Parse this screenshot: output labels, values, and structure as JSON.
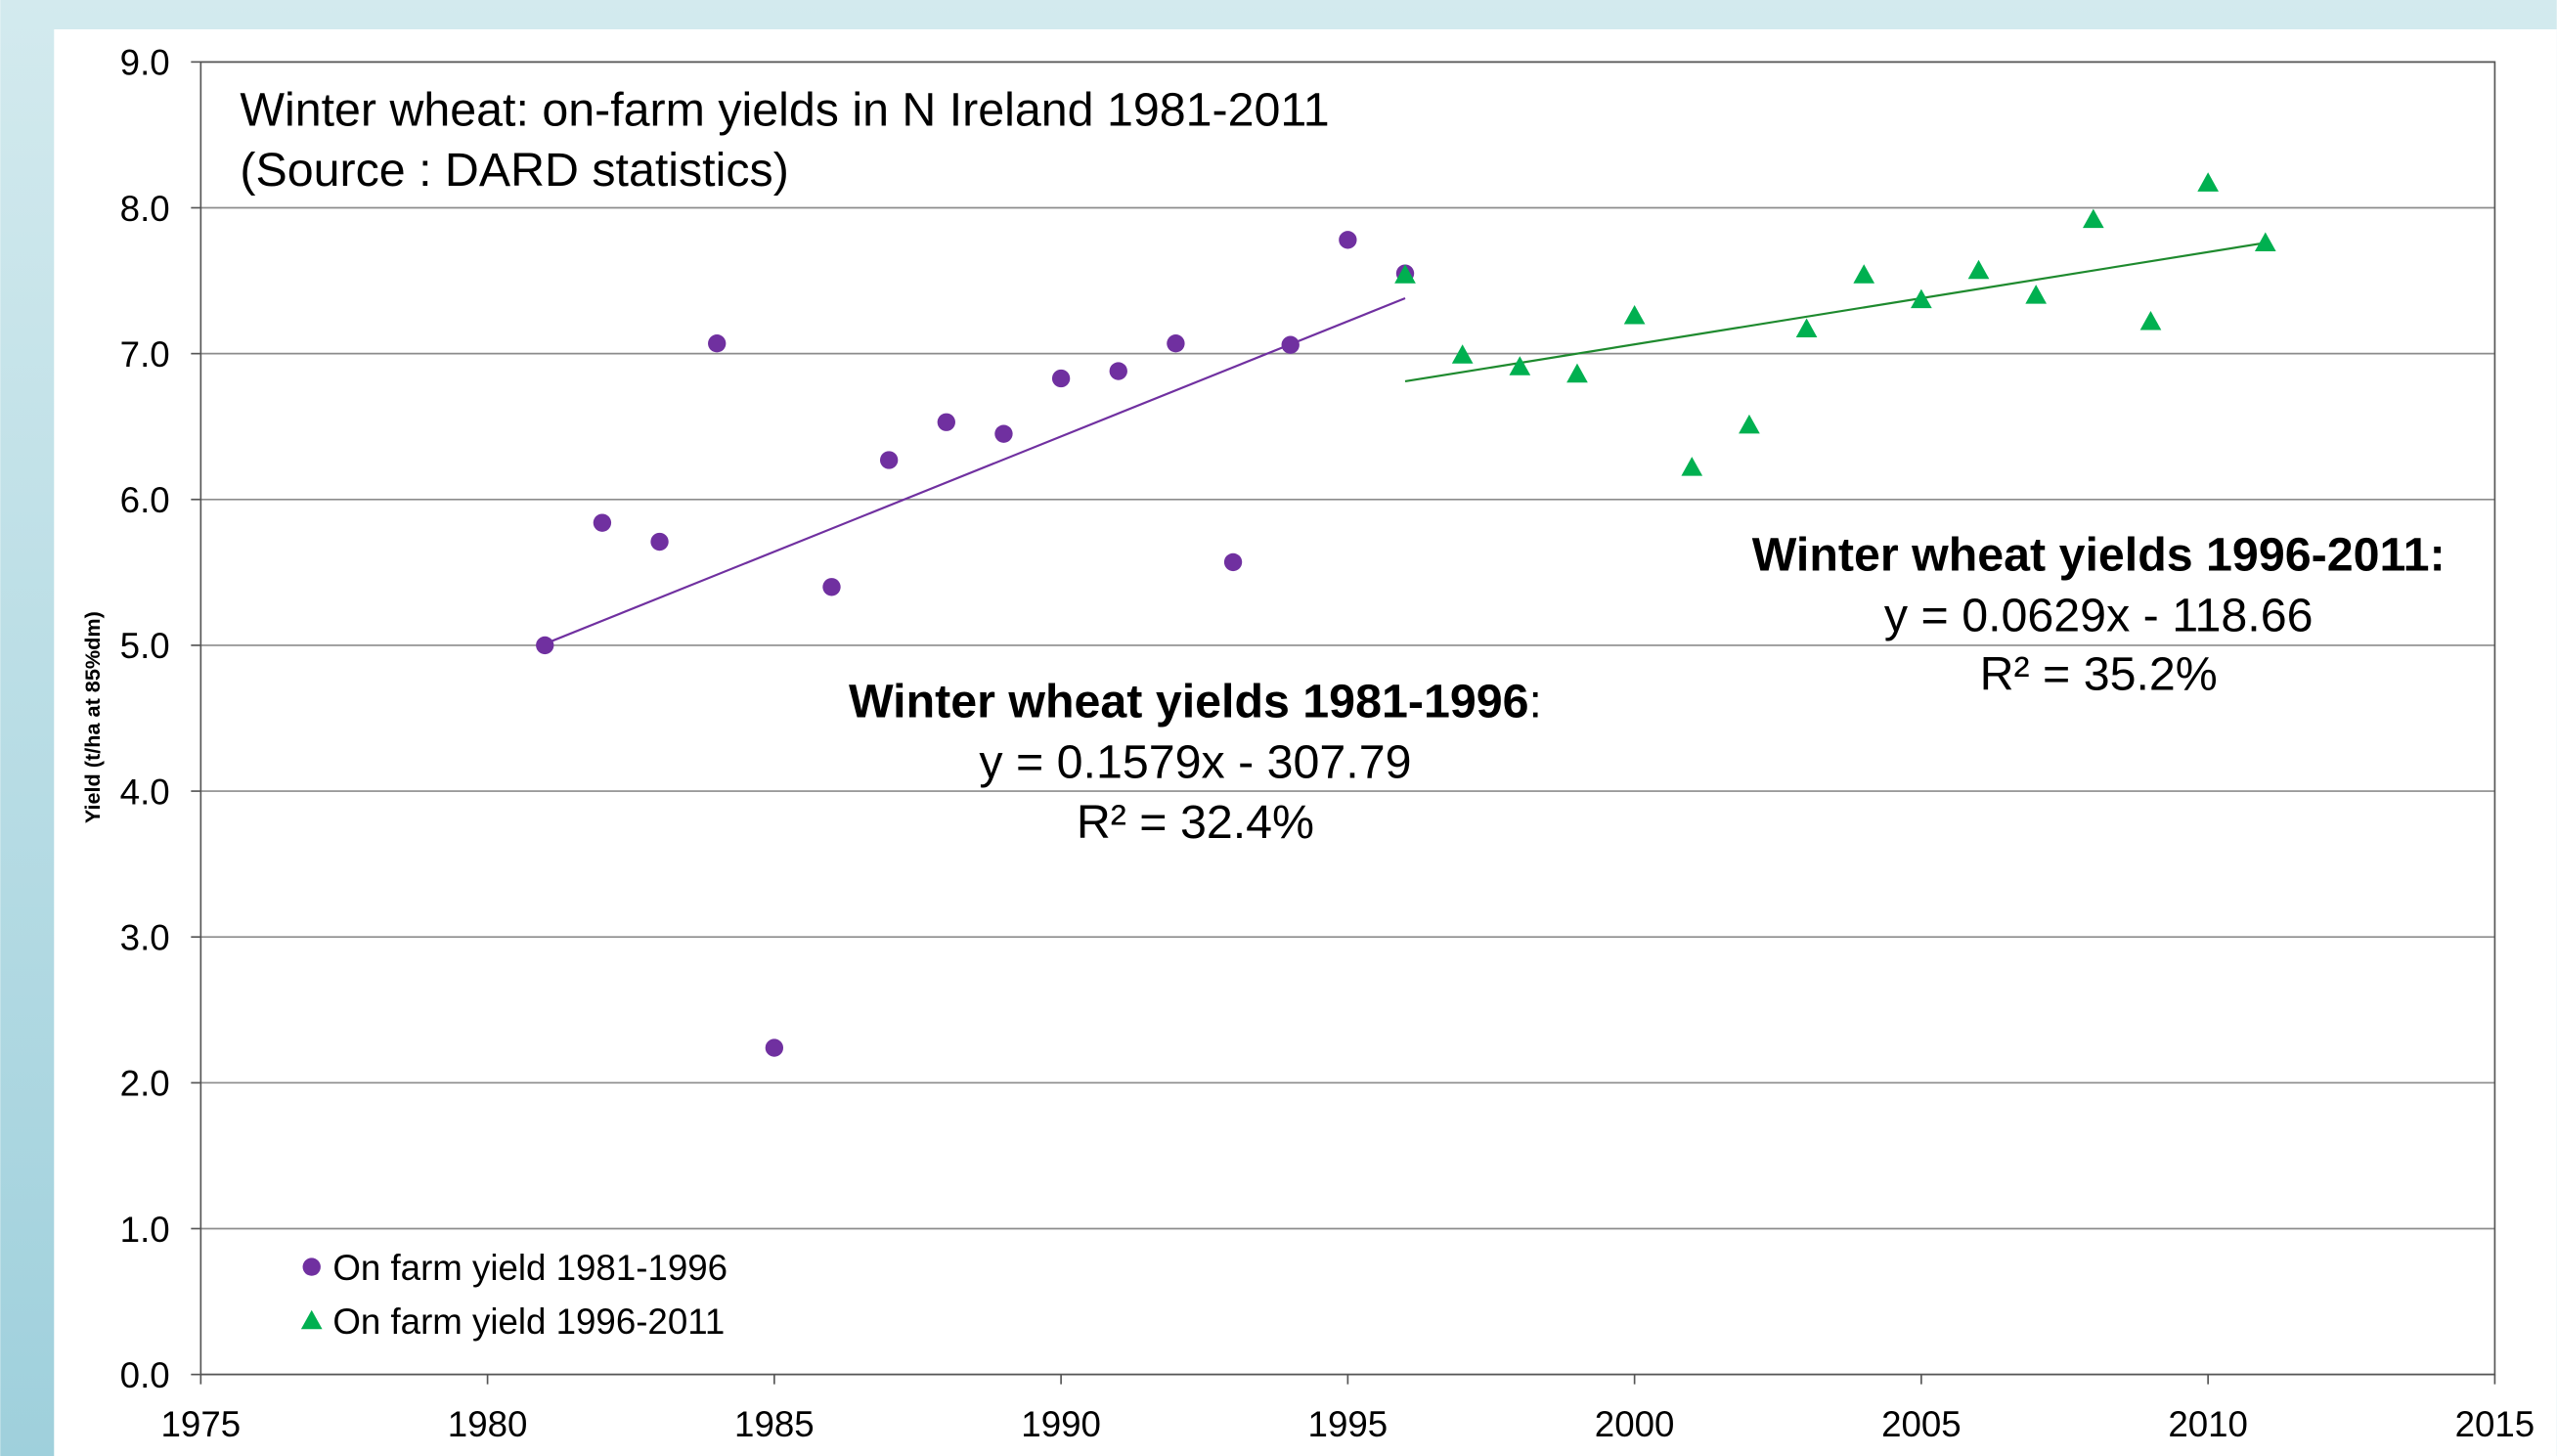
{
  "chart_data": {
    "type": "scatter",
    "title": [
      "Winter wheat: on-farm yields in N Ireland 1981-2011",
      "(Source : DARD statistics)"
    ],
    "ylabel": "Yield (t/ha at 85%dm)",
    "xlim": [
      1975,
      2015
    ],
    "xticks": [
      1975,
      1980,
      1985,
      1990,
      1995,
      2000,
      2005,
      2010,
      2015
    ],
    "ylim": [
      0,
      9
    ],
    "yticks": [
      {
        "value": 0,
        "label": "0.0"
      },
      {
        "value": 1,
        "label": "1.0"
      },
      {
        "value": 2,
        "label": "2.0"
      },
      {
        "value": 3,
        "label": "3.0"
      },
      {
        "value": 4,
        "label": "4.0"
      },
      {
        "value": 5,
        "label": "5.0"
      },
      {
        "value": 6,
        "label": "6.0"
      },
      {
        "value": 7,
        "label": "7.0"
      },
      {
        "value": 8,
        "label": "8.0"
      },
      {
        "value": 9,
        "label": "9.0"
      }
    ],
    "grid": true,
    "legend": "lower left",
    "series": [
      {
        "name": "On farm yield 1981-1996",
        "color": "#7030a0",
        "marker": "circle",
        "x": [
          1981,
          1982,
          1983,
          1984,
          1985,
          1986,
          1987,
          1988,
          1989,
          1990,
          1991,
          1992,
          1993,
          1994,
          1995,
          1996
        ],
        "values": [
          5.0,
          5.84,
          5.71,
          7.07,
          2.24,
          5.4,
          6.27,
          6.53,
          6.45,
          6.83,
          6.88,
          7.07,
          5.57,
          7.06,
          7.78,
          7.55
        ]
      },
      {
        "name": "On farm yield 1996-2011",
        "color": "#00b050",
        "marker": "triangle",
        "x": [
          1996,
          1997,
          1998,
          1999,
          2000,
          2001,
          2002,
          2003,
          2004,
          2005,
          2006,
          2007,
          2008,
          2009,
          2010,
          2011
        ],
        "values": [
          7.54,
          6.99,
          6.91,
          6.86,
          7.26,
          6.22,
          6.51,
          7.17,
          7.54,
          7.37,
          7.57,
          7.4,
          7.92,
          7.22,
          8.17,
          7.76
        ]
      }
    ],
    "trendlines": [
      {
        "color": "#7030a0",
        "x": [
          1981,
          1996
        ],
        "values": [
          5.01,
          7.38
        ]
      },
      {
        "color": "#1e8a2e",
        "x": [
          1996,
          2011
        ],
        "values": [
          6.81,
          7.76
        ]
      }
    ],
    "annotations": [
      {
        "title": "Winter wheat yields 1981-1996",
        "suffix": ":",
        "lines": [
          "y = 0.1579x - 307.79",
          "R² = 32.4%"
        ]
      },
      {
        "title": "Winter wheat yields 1996-2011:",
        "lines": [
          "y = 0.0629x - 118.66",
          "R² = 35.2%"
        ]
      }
    ]
  }
}
